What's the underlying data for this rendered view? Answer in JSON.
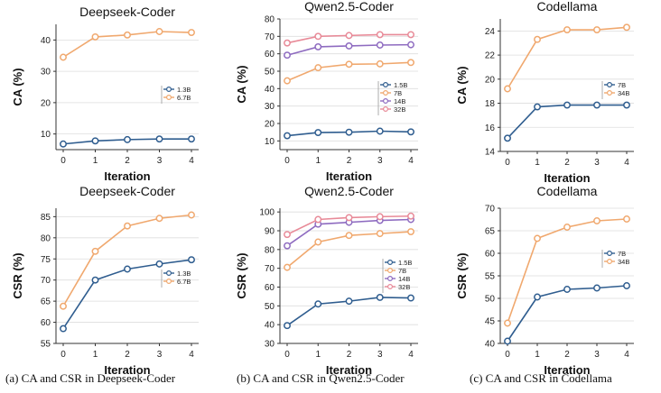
{
  "colors": {
    "series": [
      "#2F5D8F",
      "#F0A86E",
      "#8E6BC0",
      "#E88A98"
    ],
    "grid": "#dddddd",
    "axis": "#333333",
    "text": "#222222"
  },
  "captions": [
    "(a) CA and CSR in Deepseek-Coder",
    "(b) CA and CSR in Qwen2.5-Coder",
    "(c) CA and CSR in Codellama"
  ],
  "chart_data": [
    {
      "type": "line",
      "title": "Deepseek-Coder",
      "xlabel": "Iteration",
      "ylabel": "CA (%)",
      "x": [
        0,
        1,
        2,
        3,
        4
      ],
      "ylim": [
        5,
        45
      ],
      "yticks": [
        10,
        20,
        30,
        40
      ],
      "legend": "right-middle",
      "series": [
        {
          "name": "1.3B",
          "values": [
            6.8,
            7.8,
            8.2,
            8.4,
            8.4
          ]
        },
        {
          "name": "6.7B",
          "values": [
            34.5,
            41.0,
            41.6,
            42.7,
            42.4
          ]
        }
      ]
    },
    {
      "type": "line",
      "title": "Qwen2.5-Coder",
      "xlabel": "Iteration",
      "ylabel": "CA (%)",
      "x": [
        0,
        1,
        2,
        3,
        4
      ],
      "ylim": [
        5,
        80
      ],
      "yticks": [
        10,
        20,
        30,
        40,
        50,
        60,
        70,
        80
      ],
      "legend": "right-lower",
      "series": [
        {
          "name": "1.5B",
          "values": [
            13.0,
            14.8,
            15.0,
            15.6,
            15.2
          ]
        },
        {
          "name": "7B",
          "values": [
            44.5,
            52.0,
            54.0,
            54.2,
            55.0
          ]
        },
        {
          "name": "14B",
          "values": [
            59.2,
            64.0,
            64.5,
            65.0,
            65.2
          ]
        },
        {
          "name": "32B",
          "values": [
            66.2,
            70.0,
            70.5,
            71.0,
            71.0
          ]
        }
      ]
    },
    {
      "type": "line",
      "title": "Codellama",
      "xlabel": "Iteration",
      "ylabel": "CA (%)",
      "x": [
        0,
        1,
        2,
        3,
        4
      ],
      "ylim": [
        14,
        25
      ],
      "yticks": [
        14,
        16,
        18,
        20,
        22,
        24
      ],
      "legend": "right-middle",
      "series": [
        {
          "name": "7B",
          "values": [
            15.1,
            17.7,
            17.85,
            17.85,
            17.85
          ]
        },
        {
          "name": "34B",
          "values": [
            19.2,
            23.3,
            24.1,
            24.1,
            24.3
          ]
        }
      ]
    },
    {
      "type": "line",
      "title": "Deepseek-Coder",
      "xlabel": "Iteration",
      "ylabel": "CSR (%)",
      "x": [
        0,
        1,
        2,
        3,
        4
      ],
      "ylim": [
        55,
        87
      ],
      "yticks": [
        55,
        60,
        65,
        70,
        75,
        80,
        85
      ],
      "legend": "right-lower",
      "series": [
        {
          "name": "1.3B",
          "values": [
            58.5,
            70.0,
            72.6,
            73.8,
            74.8
          ]
        },
        {
          "name": "6.7B",
          "values": [
            63.8,
            76.8,
            82.8,
            84.6,
            85.4
          ]
        }
      ]
    },
    {
      "type": "line",
      "title": "Qwen2.5-Coder",
      "xlabel": "Iteration",
      "ylabel": "CSR (%)",
      "x": [
        0,
        1,
        2,
        3,
        4
      ],
      "ylim": [
        30,
        102
      ],
      "yticks": [
        30,
        40,
        50,
        60,
        70,
        80,
        90,
        100
      ],
      "legend": "right-middle",
      "series": [
        {
          "name": "1.5B",
          "values": [
            39.5,
            51.0,
            52.5,
            54.5,
            54.2
          ]
        },
        {
          "name": "7B",
          "values": [
            70.5,
            84.0,
            87.5,
            88.5,
            89.5
          ]
        },
        {
          "name": "14B",
          "values": [
            82.0,
            93.5,
            94.5,
            95.5,
            96.0
          ]
        },
        {
          "name": "32B",
          "values": [
            88.0,
            96.0,
            97.0,
            97.5,
            97.8
          ]
        }
      ]
    },
    {
      "type": "line",
      "title": "Codellama",
      "xlabel": "Iteration",
      "ylabel": "CSR (%)",
      "x": [
        0,
        1,
        2,
        3,
        4
      ],
      "ylim": [
        40,
        70
      ],
      "yticks": [
        40,
        45,
        50,
        55,
        60,
        65,
        70
      ],
      "legend": "right-middle",
      "series": [
        {
          "name": "7B",
          "values": [
            40.5,
            50.3,
            52.0,
            52.3,
            52.8
          ]
        },
        {
          "name": "34B",
          "values": [
            44.5,
            63.3,
            65.8,
            67.2,
            67.6
          ]
        }
      ]
    }
  ]
}
